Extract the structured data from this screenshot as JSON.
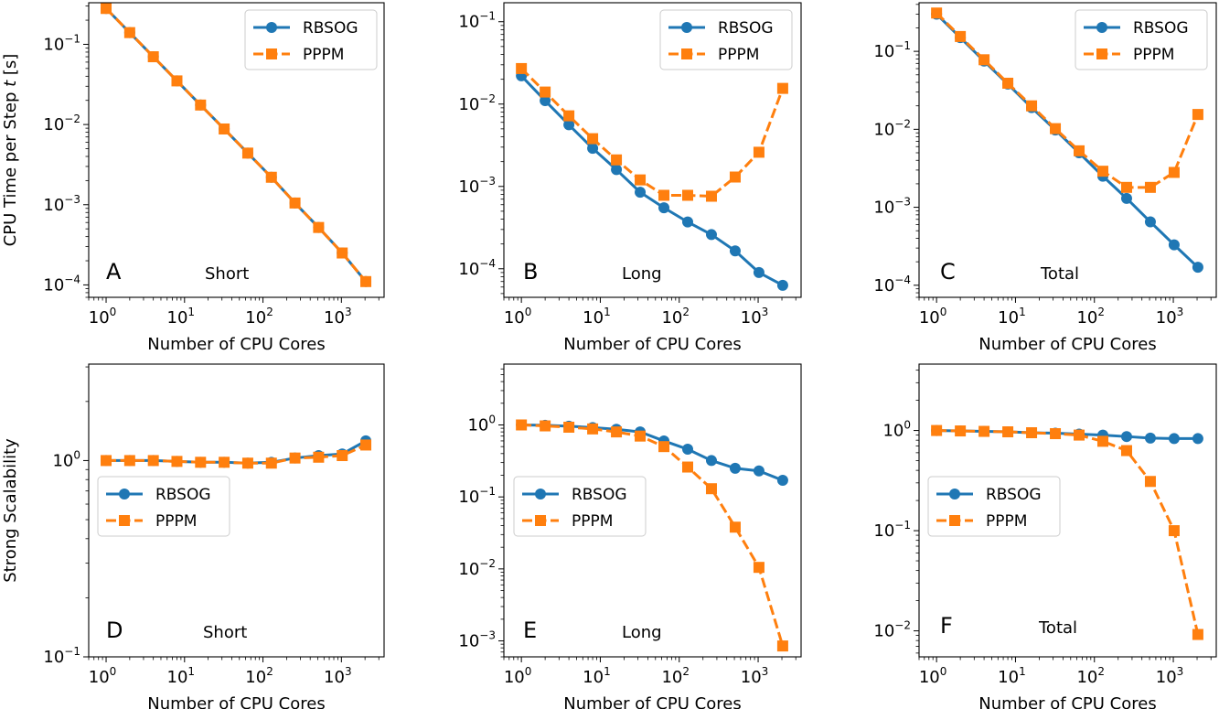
{
  "chart_data": [
    {
      "type": "line",
      "panel_label": "A",
      "annotation": "Short",
      "xlabel": "Number of CPU Cores",
      "ylabel": "CPU Time per Step t [s]",
      "xscale": "log",
      "yscale": "log",
      "xlim": [
        0.6,
        3500
      ],
      "ylim": [
        7e-05,
        0.33
      ],
      "xticks": [
        {
          "v": 1,
          "m": "10",
          "e": "0"
        },
        {
          "v": 10,
          "m": "10",
          "e": "1"
        },
        {
          "v": 100,
          "m": "10",
          "e": "2"
        },
        {
          "v": 1000,
          "m": "10",
          "e": "3"
        }
      ],
      "yticks": [
        {
          "v": 0.0001,
          "m": "10",
          "e": "−4"
        },
        {
          "v": 0.001,
          "m": "10",
          "e": "−3"
        },
        {
          "v": 0.01,
          "m": "10",
          "e": "−2"
        },
        {
          "v": 0.1,
          "m": "10",
          "e": "−1"
        }
      ],
      "legend_position": "top-right",
      "x": [
        1,
        2,
        4,
        8,
        16,
        32,
        64,
        128,
        256,
        512,
        1024,
        2048
      ],
      "series": [
        {
          "name": "RBSOG",
          "color": "#1f77b4",
          "marker": "circle",
          "linestyle": "solid",
          "values": [
            0.28,
            0.14,
            0.07,
            0.035,
            0.0175,
            0.0088,
            0.0044,
            0.0022,
            0.00105,
            0.00052,
            0.00025,
            0.00011
          ]
        },
        {
          "name": "PPPM",
          "color": "#ff7f0e",
          "marker": "square",
          "linestyle": "dashed",
          "values": [
            0.28,
            0.14,
            0.07,
            0.035,
            0.0175,
            0.0088,
            0.0044,
            0.0022,
            0.00105,
            0.00052,
            0.00025,
            0.00011
          ]
        }
      ]
    },
    {
      "type": "line",
      "panel_label": "B",
      "annotation": "Long",
      "xlabel": "Number of CPU Cores",
      "ylabel": "",
      "xscale": "log",
      "yscale": "log",
      "xlim": [
        0.6,
        3500
      ],
      "ylim": [
        4.5e-05,
        0.17
      ],
      "xticks": [
        {
          "v": 1,
          "m": "10",
          "e": "0"
        },
        {
          "v": 10,
          "m": "10",
          "e": "1"
        },
        {
          "v": 100,
          "m": "10",
          "e": "2"
        },
        {
          "v": 1000,
          "m": "10",
          "e": "3"
        }
      ],
      "yticks": [
        {
          "v": 0.0001,
          "m": "10",
          "e": "−4"
        },
        {
          "v": 0.001,
          "m": "10",
          "e": "−3"
        },
        {
          "v": 0.01,
          "m": "10",
          "e": "−2"
        },
        {
          "v": 0.1,
          "m": "10",
          "e": "−1"
        }
      ],
      "legend_position": "top-right",
      "x": [
        1,
        2,
        4,
        8,
        16,
        32,
        64,
        128,
        256,
        512,
        1024,
        2048
      ],
      "series": [
        {
          "name": "RBSOG",
          "color": "#1f77b4",
          "marker": "circle",
          "linestyle": "solid",
          "values": [
            0.022,
            0.011,
            0.0056,
            0.0029,
            0.0016,
            0.00085,
            0.00055,
            0.00037,
            0.00026,
            0.000165,
            9e-05,
            6.3e-05
          ]
        },
        {
          "name": "PPPM",
          "color": "#ff7f0e",
          "marker": "square",
          "linestyle": "dashed",
          "values": [
            0.027,
            0.014,
            0.0072,
            0.0038,
            0.0021,
            0.0012,
            0.00078,
            0.00078,
            0.00076,
            0.0013,
            0.0026,
            0.0155
          ]
        }
      ]
    },
    {
      "type": "line",
      "panel_label": "C",
      "annotation": "Total",
      "xlabel": "Number of CPU Cores",
      "ylabel": "",
      "xscale": "log",
      "yscale": "log",
      "xlim": [
        0.6,
        3500
      ],
      "ylim": [
        7e-05,
        0.42
      ],
      "xticks": [
        {
          "v": 1,
          "m": "10",
          "e": "0"
        },
        {
          "v": 10,
          "m": "10",
          "e": "1"
        },
        {
          "v": 100,
          "m": "10",
          "e": "2"
        },
        {
          "v": 1000,
          "m": "10",
          "e": "3"
        }
      ],
      "yticks": [
        {
          "v": 0.0001,
          "m": "10",
          "e": "−4"
        },
        {
          "v": 0.001,
          "m": "10",
          "e": "−3"
        },
        {
          "v": 0.01,
          "m": "10",
          "e": "−2"
        },
        {
          "v": 0.1,
          "m": "10",
          "e": "−1"
        }
      ],
      "legend_position": "top-right",
      "x": [
        1,
        2,
        4,
        8,
        16,
        32,
        64,
        128,
        256,
        512,
        1024,
        2048
      ],
      "series": [
        {
          "name": "RBSOG",
          "color": "#1f77b4",
          "marker": "circle",
          "linestyle": "solid",
          "values": [
            0.3,
            0.15,
            0.075,
            0.038,
            0.019,
            0.0098,
            0.005,
            0.0025,
            0.0013,
            0.00065,
            0.00033,
            0.00017
          ]
        },
        {
          "name": "PPPM",
          "color": "#ff7f0e",
          "marker": "square",
          "linestyle": "dashed",
          "values": [
            0.31,
            0.155,
            0.078,
            0.039,
            0.02,
            0.0102,
            0.0053,
            0.0029,
            0.0018,
            0.0018,
            0.0028,
            0.0155
          ]
        }
      ]
    },
    {
      "type": "line",
      "panel_label": "D",
      "annotation": "Short",
      "xlabel": "Number of CPU Cores",
      "ylabel": "Strong Scalability",
      "xscale": "log",
      "yscale": "log",
      "xlim": [
        0.6,
        3500
      ],
      "ylim": [
        0.1,
        3.1
      ],
      "xticks": [
        {
          "v": 1,
          "m": "10",
          "e": "0"
        },
        {
          "v": 10,
          "m": "10",
          "e": "1"
        },
        {
          "v": 100,
          "m": "10",
          "e": "2"
        },
        {
          "v": 1000,
          "m": "10",
          "e": "3"
        }
      ],
      "yticks": [
        {
          "v": 0.1,
          "m": "10",
          "e": "−1"
        },
        {
          "v": 1,
          "m": "10",
          "e": "0"
        }
      ],
      "legend_position": "center-left",
      "x": [
        1,
        2,
        4,
        8,
        16,
        32,
        64,
        128,
        256,
        512,
        1024,
        2048
      ],
      "series": [
        {
          "name": "RBSOG",
          "color": "#1f77b4",
          "marker": "circle",
          "linestyle": "solid",
          "values": [
            1.0,
            1.0,
            1.0,
            0.99,
            0.98,
            0.98,
            0.97,
            0.98,
            1.03,
            1.06,
            1.08,
            1.26
          ]
        },
        {
          "name": "PPPM",
          "color": "#ff7f0e",
          "marker": "square",
          "linestyle": "dashed",
          "values": [
            1.0,
            1.0,
            1.0,
            0.99,
            0.98,
            0.98,
            0.97,
            0.97,
            1.03,
            1.04,
            1.06,
            1.2
          ]
        }
      ]
    },
    {
      "type": "line",
      "panel_label": "E",
      "annotation": "Long",
      "xlabel": "Number of CPU Cores",
      "ylabel": "",
      "xscale": "log",
      "yscale": "log",
      "xlim": [
        0.6,
        3500
      ],
      "ylim": [
        0.0006,
        7
      ],
      "xticks": [
        {
          "v": 1,
          "m": "10",
          "e": "0"
        },
        {
          "v": 10,
          "m": "10",
          "e": "1"
        },
        {
          "v": 100,
          "m": "10",
          "e": "2"
        },
        {
          "v": 1000,
          "m": "10",
          "e": "3"
        }
      ],
      "yticks": [
        {
          "v": 0.001,
          "m": "10",
          "e": "−3"
        },
        {
          "v": 0.01,
          "m": "10",
          "e": "−2"
        },
        {
          "v": 0.1,
          "m": "10",
          "e": "−1"
        },
        {
          "v": 1,
          "m": "10",
          "e": "0"
        }
      ],
      "legend_position": "center-left",
      "x": [
        1,
        2,
        4,
        8,
        16,
        32,
        64,
        128,
        256,
        512,
        1024,
        2048
      ],
      "series": [
        {
          "name": "RBSOG",
          "color": "#1f77b4",
          "marker": "circle",
          "linestyle": "solid",
          "values": [
            1.0,
            0.99,
            0.96,
            0.92,
            0.87,
            0.8,
            0.6,
            0.46,
            0.32,
            0.25,
            0.23,
            0.17
          ]
        },
        {
          "name": "PPPM",
          "color": "#ff7f0e",
          "marker": "square",
          "linestyle": "dashed",
          "values": [
            1.0,
            0.97,
            0.93,
            0.88,
            0.8,
            0.7,
            0.5,
            0.26,
            0.13,
            0.038,
            0.0105,
            0.00085
          ]
        }
      ]
    },
    {
      "type": "line",
      "panel_label": "F",
      "annotation": "Total",
      "xlabel": "Number of CPU Cores",
      "ylabel": "",
      "xscale": "log",
      "yscale": "log",
      "xlim": [
        0.6,
        3500
      ],
      "ylim": [
        0.0055,
        4.6
      ],
      "xticks": [
        {
          "v": 1,
          "m": "10",
          "e": "0"
        },
        {
          "v": 10,
          "m": "10",
          "e": "1"
        },
        {
          "v": 100,
          "m": "10",
          "e": "2"
        },
        {
          "v": 1000,
          "m": "10",
          "e": "3"
        }
      ],
      "yticks": [
        {
          "v": 0.01,
          "m": "10",
          "e": "−2"
        },
        {
          "v": 0.1,
          "m": "10",
          "e": "−1"
        },
        {
          "v": 1,
          "m": "10",
          "e": "0"
        }
      ],
      "legend_position": "center-left",
      "x": [
        1,
        2,
        4,
        8,
        16,
        32,
        64,
        128,
        256,
        512,
        1024,
        2048
      ],
      "series": [
        {
          "name": "RBSOG",
          "color": "#1f77b4",
          "marker": "circle",
          "linestyle": "solid",
          "values": [
            1.0,
            0.99,
            0.98,
            0.97,
            0.95,
            0.94,
            0.92,
            0.9,
            0.87,
            0.84,
            0.83,
            0.83
          ]
        },
        {
          "name": "PPPM",
          "color": "#ff7f0e",
          "marker": "square",
          "linestyle": "dashed",
          "values": [
            1.0,
            0.99,
            0.98,
            0.97,
            0.95,
            0.93,
            0.9,
            0.78,
            0.63,
            0.31,
            0.1,
            0.0092
          ]
        }
      ]
    }
  ]
}
